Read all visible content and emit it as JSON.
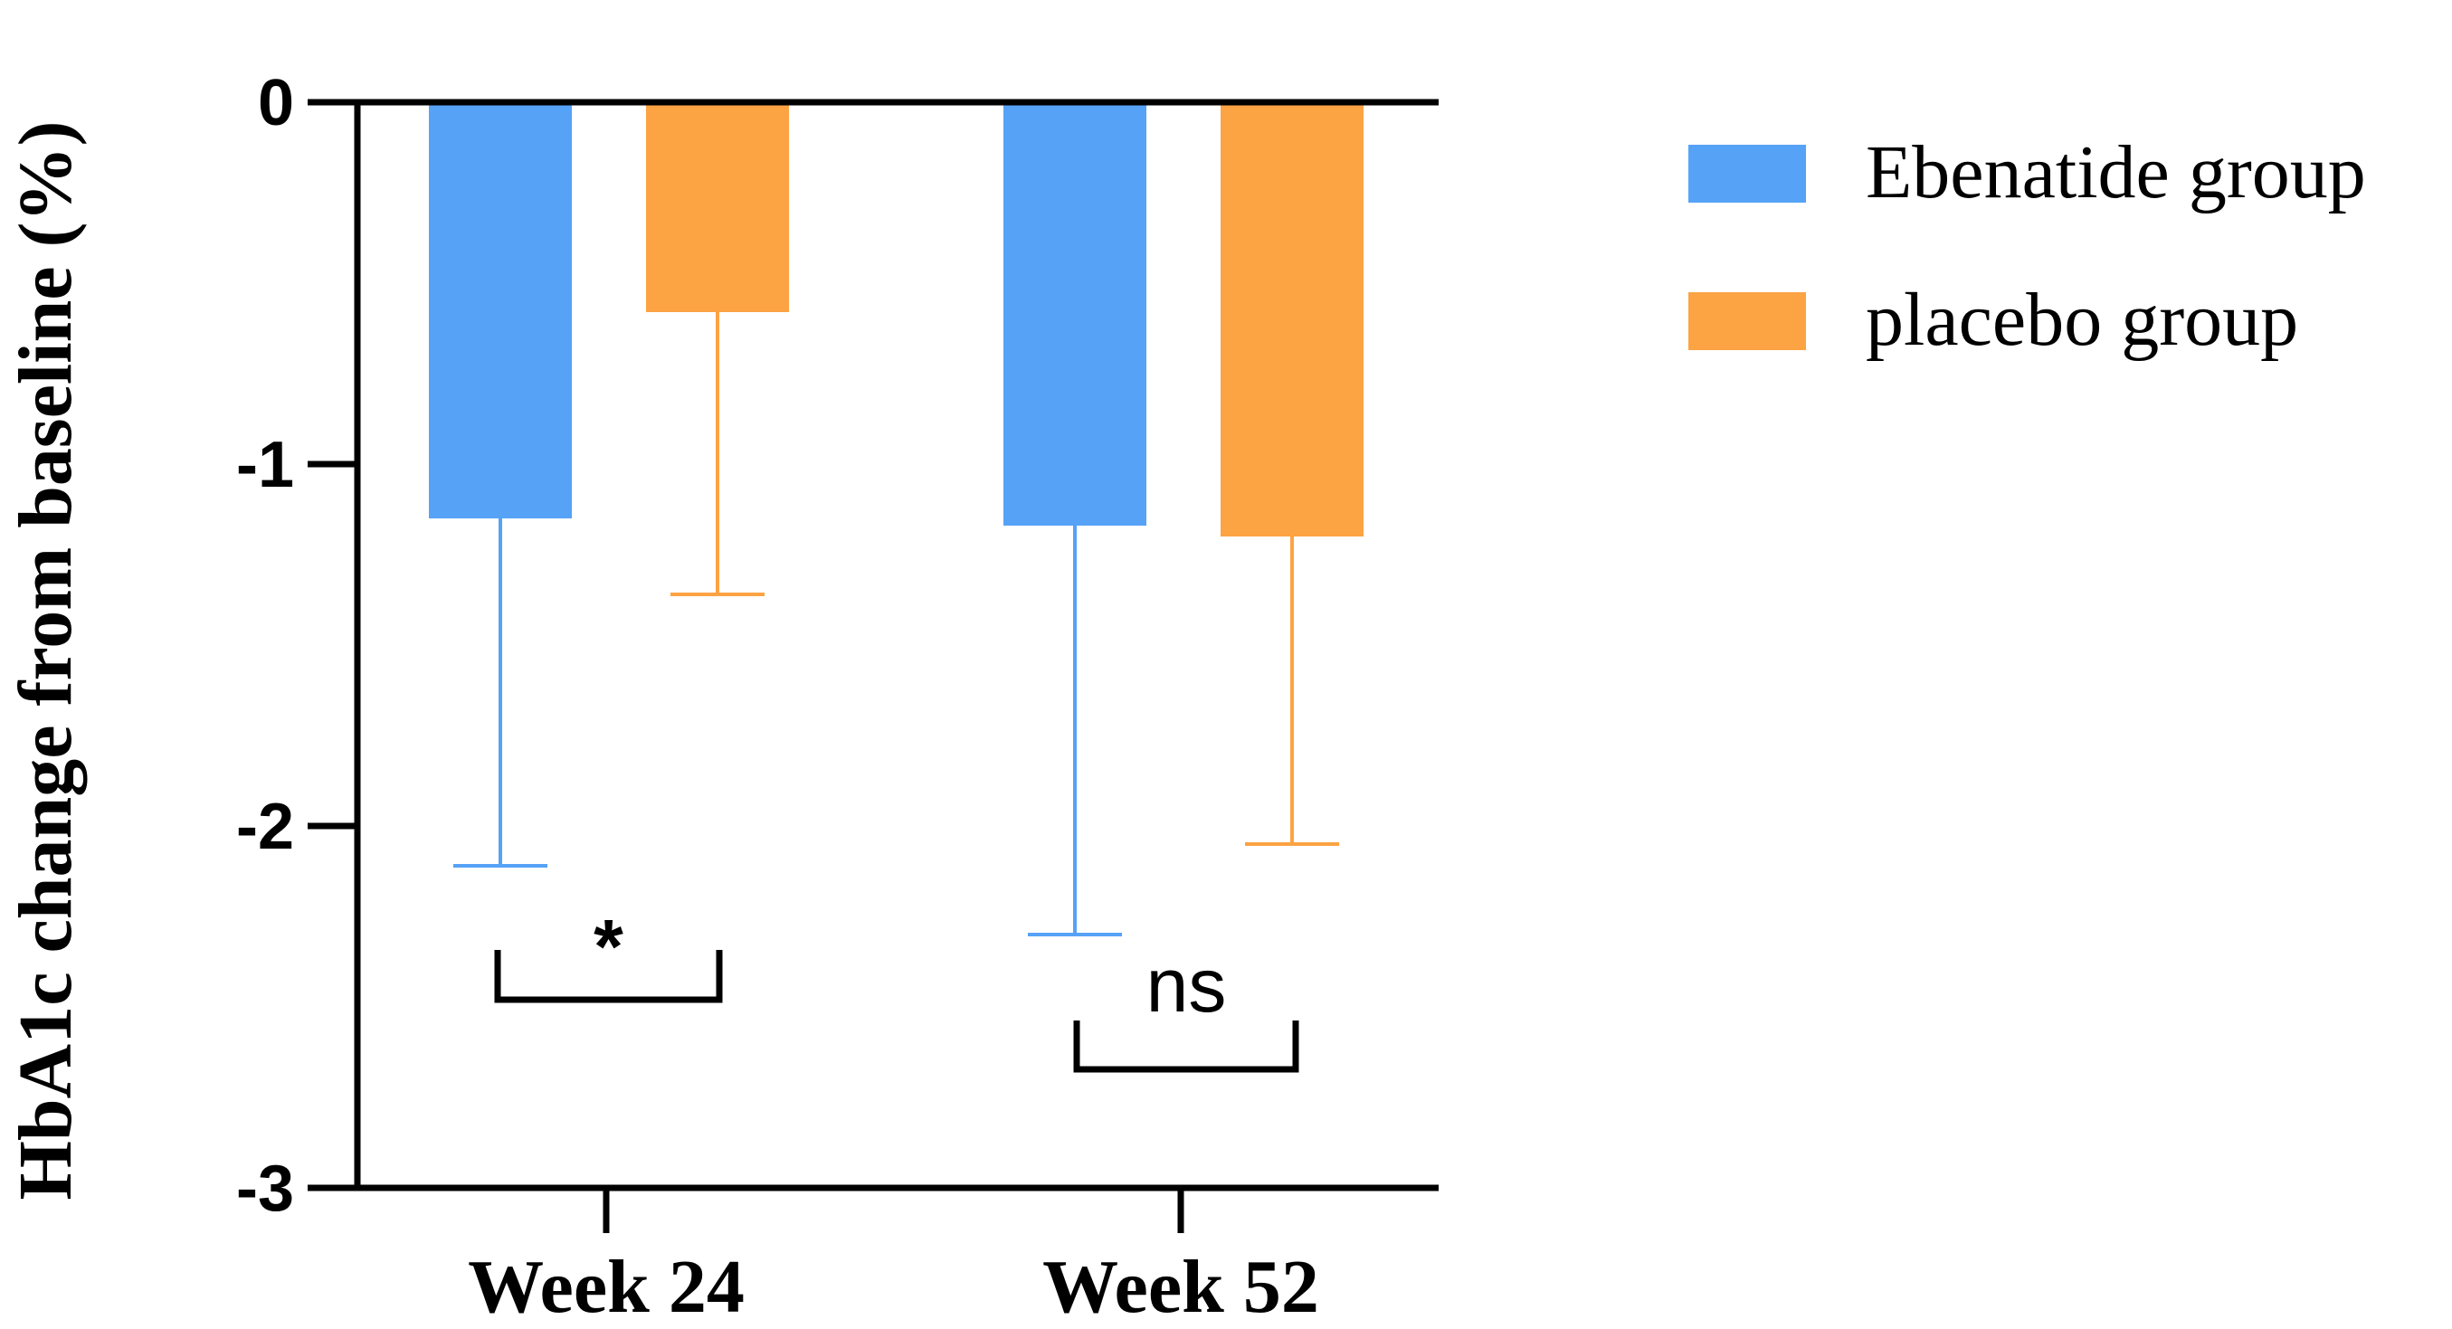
{
  "chart_data": {
    "type": "bar",
    "title": "",
    "xlabel": "",
    "ylabel": "HbA1c change from baseline (%)",
    "categories": [
      "Week 24",
      "Week 52"
    ],
    "series": [
      {
        "name": "Ebenatide group",
        "color": "#56a2f7",
        "values": [
          -1.15,
          -1.17
        ],
        "error_low": [
          -2.11,
          -2.3
        ]
      },
      {
        "name": "placebo group",
        "color": "#fca343",
        "values": [
          -0.58,
          -1.2
        ],
        "error_low": [
          -1.36,
          -2.05
        ]
      }
    ],
    "ylim": [
      -3,
      0
    ],
    "yticks": [
      "0",
      "-1",
      "-2",
      "-3"
    ],
    "ytick_values": [
      0,
      -1,
      -2,
      -3
    ],
    "grid": false,
    "legend_position": "right",
    "significance": [
      {
        "category": "Week 24",
        "label": "*"
      },
      {
        "category": "Week 52",
        "label": "ns"
      }
    ]
  }
}
